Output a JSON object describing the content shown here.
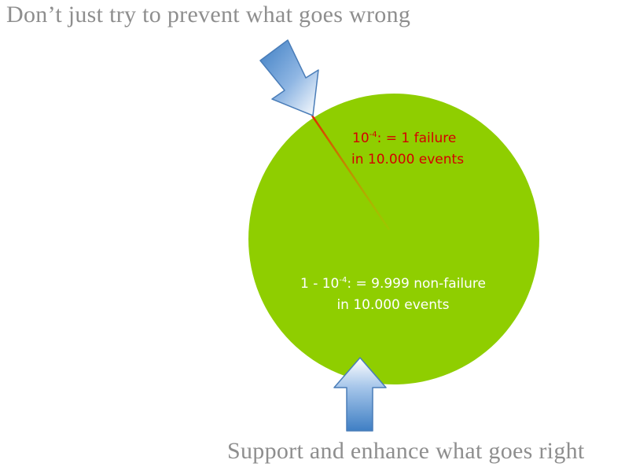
{
  "headlines": {
    "top": "Don’t just try to prevent what goes wrong",
    "bottom": "Support and enhance what goes right"
  },
  "failure_label": {
    "line1_base": "10",
    "line1_exp": "-4",
    "line1_rest": ": = 1 failure",
    "line2": "in 10.000 events"
  },
  "success_label": {
    "line1_base": "1 - 10",
    "line1_exp": "-4",
    "line1_rest": ": = 9.999 non-failure",
    "line2": "in 10.000 events"
  },
  "colors": {
    "circle": "#8fce00",
    "failure_text": "#d40000",
    "success_text": "#ffffff",
    "headline": "#8e8e8e",
    "wedge_line": "#e05a00"
  }
}
